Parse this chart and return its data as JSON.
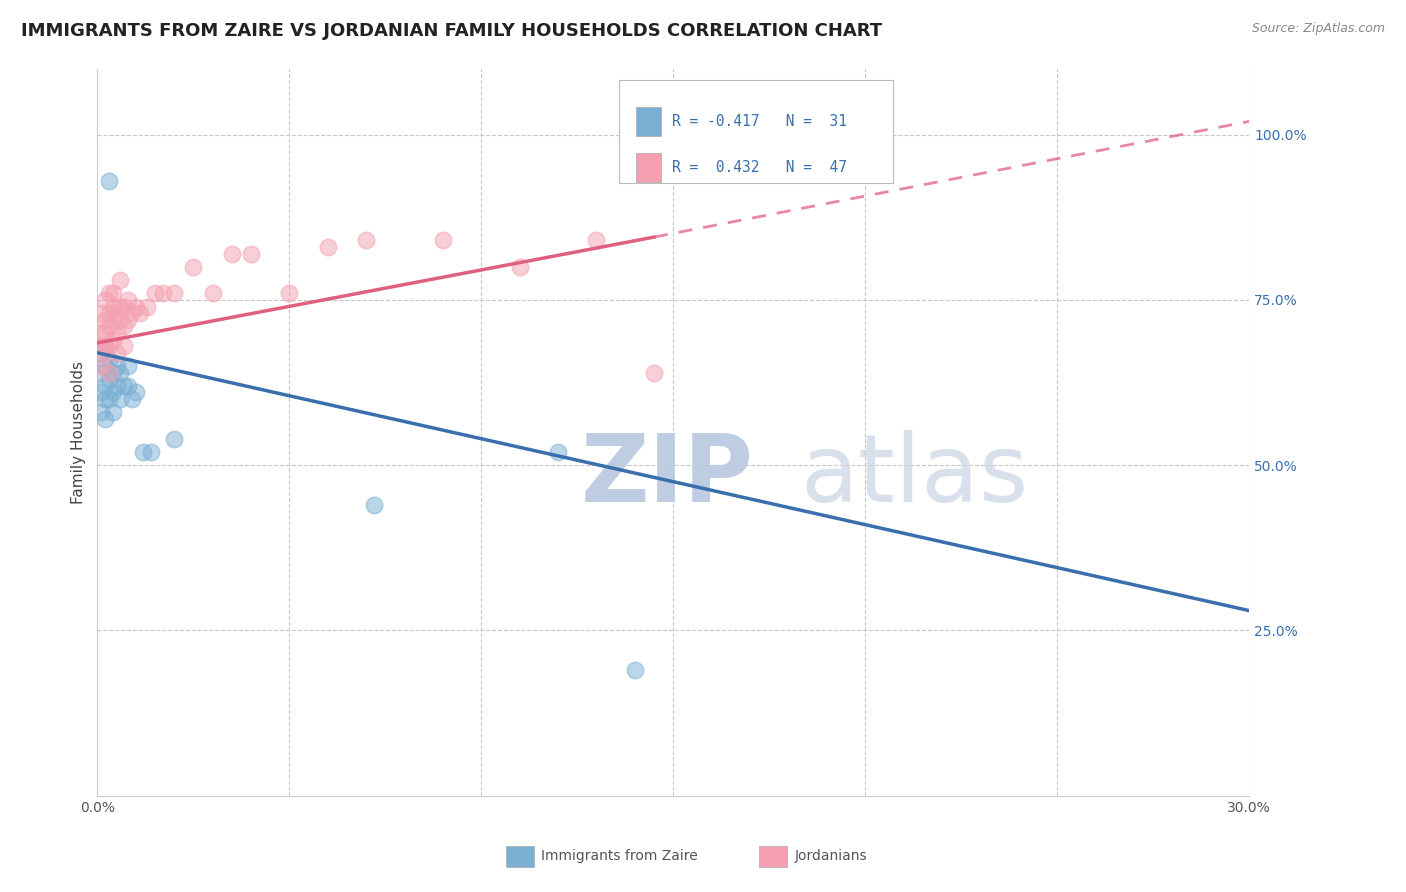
{
  "title": "IMMIGRANTS FROM ZAIRE VS JORDANIAN FAMILY HOUSEHOLDS CORRELATION CHART",
  "source_text": "Source: ZipAtlas.com",
  "ylabel": "Family Households",
  "xlim": [
    0.0,
    0.3
  ],
  "ylim": [
    0.0,
    1.1
  ],
  "yticks_right": [
    0.25,
    0.5,
    0.75,
    1.0
  ],
  "yticklabels_right": [
    "25.0%",
    "50.0%",
    "75.0%",
    "100.0%"
  ],
  "legend_blue_label": "Immigrants from Zaire",
  "legend_pink_label": "Jordanians",
  "blue_color": "#7bafd4",
  "pink_color": "#f4a0b0",
  "blue_line_color": "#3a6fad",
  "pink_line_color": "#e06080",
  "grid_color": "#c8c8c8",
  "background_color": "#ffffff",
  "watermark_text": "ZIPatlas",
  "watermark_color": "#d0d8e8",
  "title_fontsize": 13,
  "axis_label_fontsize": 11,
  "tick_fontsize": 10,
  "blue_scatter_x": [
    0.001,
    0.001,
    0.001,
    0.001,
    0.002,
    0.002,
    0.002,
    0.002,
    0.002,
    0.003,
    0.003,
    0.003,
    0.003,
    0.004,
    0.004,
    0.004,
    0.005,
    0.005,
    0.006,
    0.006,
    0.007,
    0.008,
    0.008,
    0.009,
    0.01,
    0.012,
    0.014,
    0.02,
    0.072,
    0.14,
    0.12
  ],
  "blue_scatter_y": [
    0.67,
    0.64,
    0.61,
    0.58,
    0.68,
    0.65,
    0.62,
    0.6,
    0.57,
    0.66,
    0.63,
    0.6,
    0.93,
    0.64,
    0.61,
    0.58,
    0.65,
    0.62,
    0.64,
    0.6,
    0.62,
    0.65,
    0.62,
    0.6,
    0.61,
    0.52,
    0.52,
    0.54,
    0.44,
    0.19,
    0.52
  ],
  "pink_scatter_x": [
    0.001,
    0.001,
    0.001,
    0.001,
    0.002,
    0.002,
    0.002,
    0.002,
    0.002,
    0.003,
    0.003,
    0.003,
    0.003,
    0.003,
    0.004,
    0.004,
    0.004,
    0.004,
    0.005,
    0.005,
    0.005,
    0.006,
    0.006,
    0.006,
    0.007,
    0.007,
    0.007,
    0.008,
    0.008,
    0.009,
    0.01,
    0.011,
    0.013,
    0.015,
    0.017,
    0.02,
    0.025,
    0.03,
    0.035,
    0.04,
    0.05,
    0.06,
    0.07,
    0.09,
    0.11,
    0.13,
    0.145
  ],
  "pink_scatter_y": [
    0.7,
    0.73,
    0.68,
    0.65,
    0.72,
    0.7,
    0.68,
    0.75,
    0.67,
    0.73,
    0.71,
    0.68,
    0.76,
    0.64,
    0.74,
    0.72,
    0.69,
    0.76,
    0.73,
    0.7,
    0.67,
    0.74,
    0.72,
    0.78,
    0.74,
    0.71,
    0.68,
    0.75,
    0.72,
    0.73,
    0.74,
    0.73,
    0.74,
    0.76,
    0.76,
    0.76,
    0.8,
    0.76,
    0.82,
    0.82,
    0.76,
    0.83,
    0.84,
    0.84,
    0.8,
    0.84,
    0.64
  ],
  "blue_line_x0": 0.0,
  "blue_line_x1": 0.3,
  "blue_line_y0": 0.67,
  "blue_line_y1": 0.28,
  "pink_line_x0": 0.0,
  "pink_line_x1": 0.145,
  "pink_line_xd": 0.3,
  "pink_line_y0": 0.685,
  "pink_line_y1": 0.845,
  "pink_line_yd": 1.02
}
